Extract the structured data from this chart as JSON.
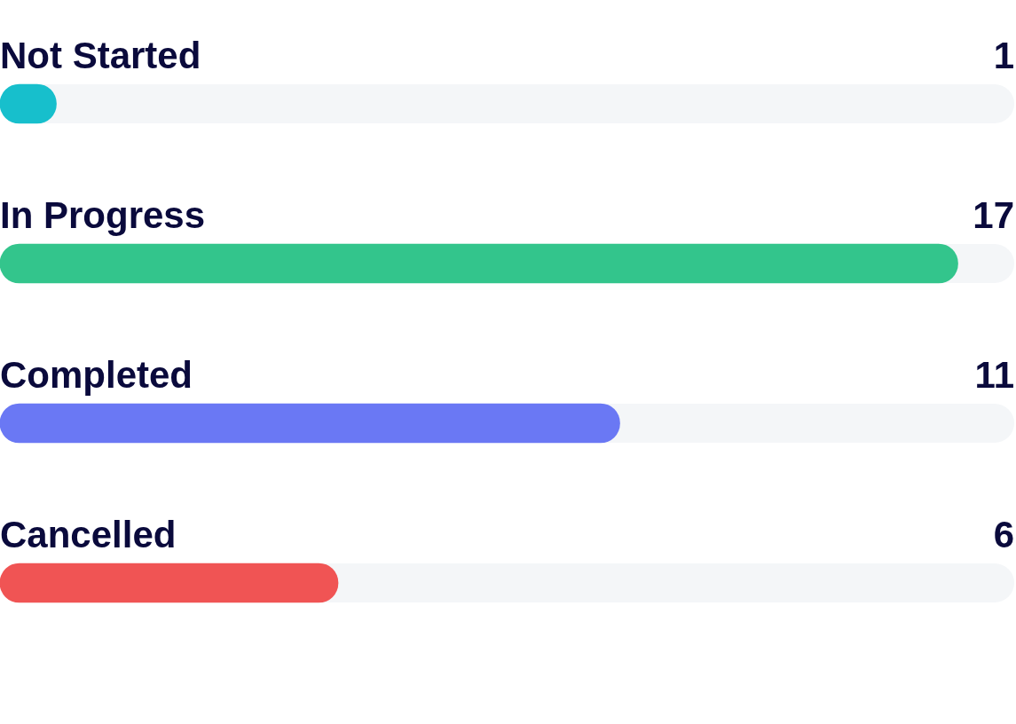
{
  "chart_data": {
    "type": "bar",
    "orientation": "horizontal",
    "categories": [
      "Not Started",
      "In Progress",
      "Completed",
      "Cancelled"
    ],
    "values": [
      1,
      17,
      11,
      6
    ],
    "colors": [
      "#17bfcc",
      "#33c58c",
      "#6a78f4",
      "#f05454"
    ],
    "data_labels": true,
    "legend": false
  }
}
